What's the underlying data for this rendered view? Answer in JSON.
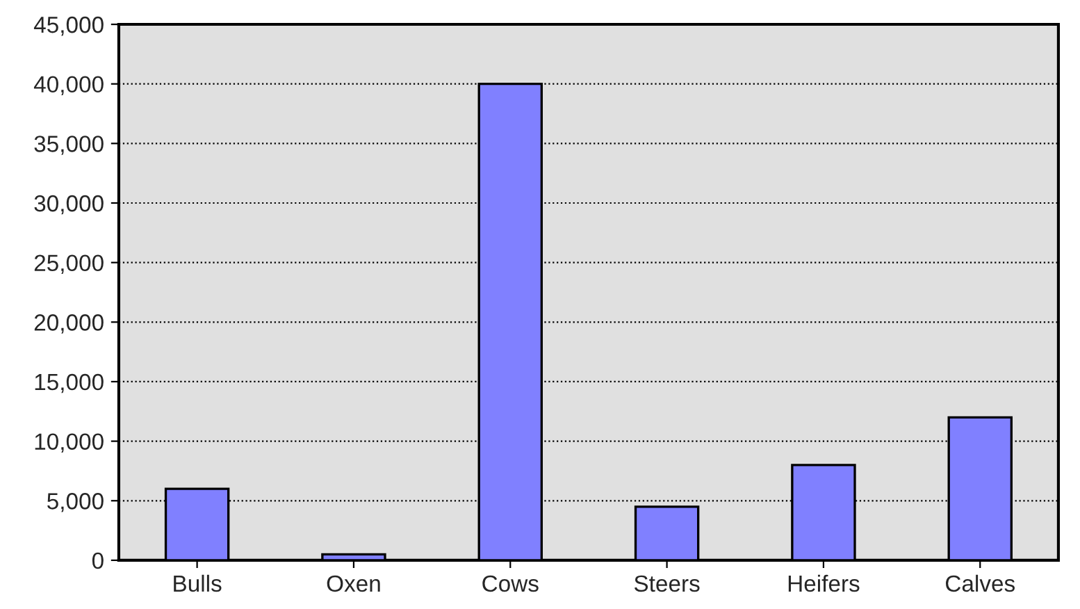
{
  "chart_data": {
    "type": "bar",
    "categories": [
      "Bulls",
      "Oxen",
      "Cows",
      "Steers",
      "Heifers",
      "Calves"
    ],
    "series": [
      {
        "color": "#8080ff",
        "values": [
          6000,
          500,
          40000,
          4500,
          8000,
          12000
        ]
      }
    ],
    "ylim": [
      0,
      45000
    ],
    "yticks": [
      {
        "value": 0,
        "label": "0"
      },
      {
        "value": 5000,
        "label": "5,000"
      },
      {
        "value": 10000,
        "label": "10,000"
      },
      {
        "value": 15000,
        "label": "15,000"
      },
      {
        "value": 20000,
        "label": "20,000"
      },
      {
        "value": 25000,
        "label": "25,000"
      },
      {
        "value": 30000,
        "label": "30,000"
      },
      {
        "value": 35000,
        "label": "35,000"
      },
      {
        "value": 40000,
        "label": "40,000"
      },
      {
        "value": 45000,
        "label": "45,000"
      }
    ],
    "grid": "y",
    "legend": false
  }
}
